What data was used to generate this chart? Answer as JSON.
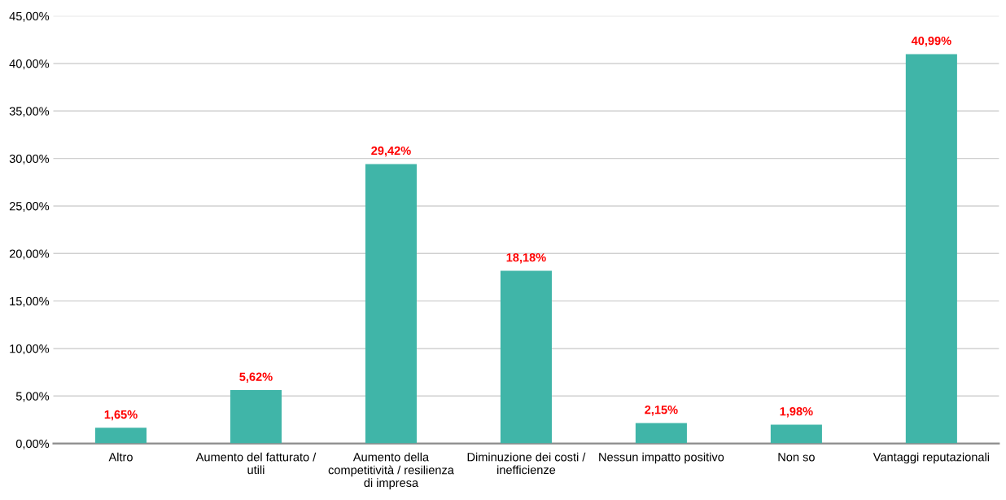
{
  "chart_data": {
    "type": "bar",
    "categories": [
      "Altro",
      "Aumento del fatturato / utili",
      "Aumento della competitività / resilienza di impresa",
      "Diminuzione dei costi / inefficienze",
      "Nessun impatto positivo",
      "Non so",
      "Vantaggi reputazionali"
    ],
    "values": [
      1.65,
      5.62,
      29.42,
      18.18,
      2.15,
      1.98,
      40.99
    ],
    "value_labels": [
      "1,65%",
      "5,62%",
      "29,42%",
      "18,18%",
      "2,15%",
      "1,98%",
      "40,99%"
    ],
    "color": "#40b5a8",
    "ylim": [
      0,
      45
    ],
    "yticks": [
      {
        "value": 0,
        "label": "0,00%"
      },
      {
        "value": 5,
        "label": "5,00%"
      },
      {
        "value": 10,
        "label": "10,00%"
      },
      {
        "value": 15,
        "label": "15,00%"
      },
      {
        "value": 20,
        "label": "20,00%"
      },
      {
        "value": 25,
        "label": "25,00%"
      },
      {
        "value": 30,
        "label": "30,00%"
      },
      {
        "value": 35,
        "label": "35,00%"
      },
      {
        "value": 40,
        "label": "40,00%"
      },
      {
        "value": 45,
        "label": "45,00%"
      }
    ],
    "grid": "y"
  }
}
